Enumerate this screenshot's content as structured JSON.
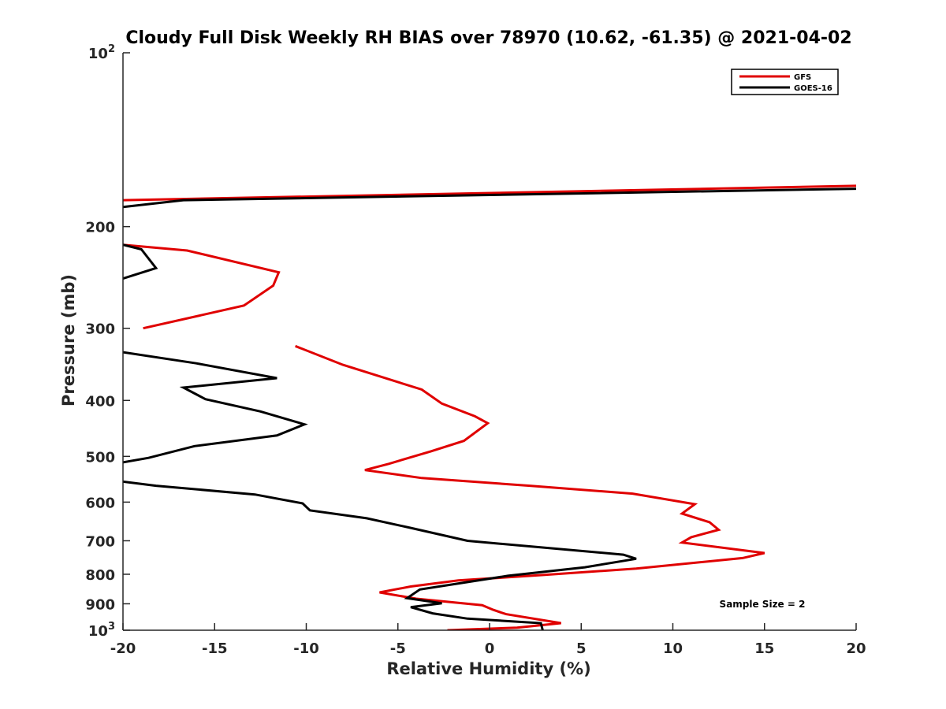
{
  "chart_data": {
    "type": "line",
    "title": "Cloudy Full Disk Weekly RH BIAS over 78970 (10.62, -61.35) @ 2021-04-02",
    "xlabel": "Relative Humidity (%)",
    "ylabel": "Pressure (mb)",
    "xlim": [
      -20,
      20
    ],
    "ylim": [
      100,
      1000
    ],
    "y_scale": "log",
    "y_reversed": true,
    "grid": false,
    "legend_position": "top-right",
    "x_ticks": [
      "-20",
      "-15",
      "-10",
      "-5",
      "0",
      "5",
      "10",
      "15",
      "20"
    ],
    "y_ticks": [
      {
        "value": 100,
        "base": "10",
        "exp": "2"
      },
      {
        "value": 200,
        "label": "200"
      },
      {
        "value": 300,
        "label": "300"
      },
      {
        "value": 400,
        "label": "400"
      },
      {
        "value": 500,
        "label": "500"
      },
      {
        "value": 600,
        "label": "600"
      },
      {
        "value": 700,
        "label": "700"
      },
      {
        "value": 800,
        "label": "800"
      },
      {
        "value": 900,
        "label": "900"
      },
      {
        "value": 1000,
        "base": "10",
        "exp": "3"
      }
    ],
    "annotation": "Sample Size = 2",
    "series": [
      {
        "name": "GFS",
        "color": "#e00000",
        "segments": [
          [
            [
              -20,
              180
            ],
            [
              20,
              170
            ]
          ],
          [
            [
              -20,
              215
            ],
            [
              -16.5,
              220
            ],
            [
              -11.5,
              240
            ],
            [
              -11.8,
              253
            ],
            [
              -13.4,
              274
            ],
            [
              -18.9,
              300
            ]
          ],
          [
            [
              -10.6,
              322
            ],
            [
              -8,
              347
            ],
            [
              -3.7,
              383
            ],
            [
              -2.6,
              405
            ],
            [
              -0.8,
              426
            ],
            [
              -0.1,
              438
            ],
            [
              -1.4,
              470
            ],
            [
              -3.2,
              490
            ],
            [
              -5.5,
              515
            ],
            [
              -6.8,
              528
            ],
            [
              -3.7,
              545
            ],
            [
              2.2,
              562
            ],
            [
              7.8,
              580
            ],
            [
              11.2,
              605
            ],
            [
              10.5,
              628
            ],
            [
              12,
              650
            ],
            [
              12.5,
              670
            ],
            [
              11,
              690
            ],
            [
              10.5,
              705
            ],
            [
              15,
              735
            ],
            [
              13.8,
              750
            ],
            [
              8,
              782
            ],
            [
              3,
              802
            ],
            [
              -1.7,
              820
            ],
            [
              -4.3,
              840
            ],
            [
              -6,
              860
            ],
            [
              -4,
              882
            ],
            [
              -0.4,
              905
            ],
            [
              0.2,
              922
            ],
            [
              0.9,
              938
            ],
            [
              3.9,
              972
            ],
            [
              1.5,
              990
            ],
            [
              -2.3,
              1000
            ]
          ]
        ]
      },
      {
        "name": "GOES-16",
        "color": "#000000",
        "segments": [
          [
            [
              -20,
              185
            ],
            [
              -16.7,
              180
            ],
            [
              20,
              172
            ]
          ],
          [
            [
              -20,
              215
            ],
            [
              -19,
              219
            ],
            [
              -18.2,
              236
            ],
            [
              -20,
              246
            ]
          ],
          [
            [
              -20,
              330
            ],
            [
              -16,
              345
            ],
            [
              -11.6,
              366
            ],
            [
              -16.7,
              380
            ],
            [
              -15.5,
              398
            ],
            [
              -12.5,
              418
            ],
            [
              -10.1,
              440
            ],
            [
              -11.6,
              460
            ],
            [
              -16.1,
              480
            ],
            [
              -18.6,
              503
            ],
            [
              -20,
              512
            ]
          ],
          [
            [
              -20,
              553
            ],
            [
              -18.2,
              562
            ],
            [
              -12.8,
              582
            ],
            [
              -10.2,
              603
            ],
            [
              -9.8,
              620
            ],
            [
              -6.7,
              640
            ],
            [
              -4.3,
              665
            ],
            [
              -1.2,
              700
            ],
            [
              7.3,
              740
            ],
            [
              8,
              752
            ],
            [
              5.2,
              778
            ],
            [
              1,
              805
            ],
            [
              -3.8,
              850
            ],
            [
              -4.5,
              880
            ],
            [
              -2.6,
              898
            ],
            [
              -4.3,
              912
            ],
            [
              -3.1,
              935
            ],
            [
              -1.2,
              955
            ],
            [
              2.8,
              972
            ],
            [
              2.9,
              1000
            ]
          ]
        ]
      }
    ]
  }
}
